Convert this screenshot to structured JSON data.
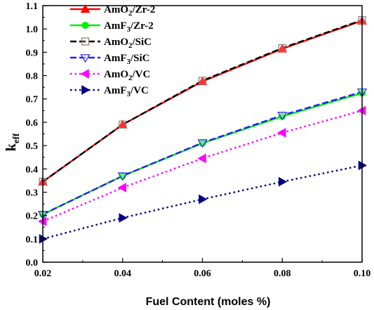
{
  "chart_data": {
    "type": "line",
    "xlabel": "Fuel Content (moles %)",
    "ylabel": "k",
    "ylabel_subscript": "eff",
    "xlim": [
      0.02,
      0.1
    ],
    "ylim": [
      0.0,
      1.1
    ],
    "x_ticks": [
      "0.02",
      "0.04",
      "0.06",
      "0.08",
      "0.10"
    ],
    "y_ticks": [
      "0.0",
      "0.1",
      "0.2",
      "0.3",
      "0.4",
      "0.5",
      "0.6",
      "0.7",
      "0.8",
      "0.9",
      "1.0",
      "1.1"
    ],
    "x": [
      0.02,
      0.04,
      0.06,
      0.08,
      0.1
    ],
    "grid": false,
    "legend_position": "top-left",
    "series": [
      {
        "name": "AmO2/Zr-2",
        "label_base": "AmO",
        "label_sub": "2",
        "label_rest": "/Zr-2",
        "values": [
          0.345,
          0.59,
          0.775,
          0.915,
          1.035
        ],
        "color": "#ff0000",
        "dash": "solid",
        "marker": "triangle-up-filled"
      },
      {
        "name": "AmF3/Zr-2",
        "label_base": "AmF",
        "label_sub": "3",
        "label_rest": "/Zr-2",
        "values": [
          0.205,
          0.37,
          0.51,
          0.625,
          0.725
        ],
        "color": "#00ee00",
        "dash": "solid",
        "marker": "circle-filled"
      },
      {
        "name": "AmO2/SiC",
        "label_base": "AmO",
        "label_sub": "2",
        "label_rest": "/SiC",
        "values": [
          0.345,
          0.59,
          0.778,
          0.918,
          1.038
        ],
        "color": "#000000",
        "dash": "dashed",
        "marker": "square-open"
      },
      {
        "name": "AmF3/SiC",
        "label_base": "AmF",
        "label_sub": "3",
        "label_rest": "/SiC",
        "values": [
          0.205,
          0.37,
          0.512,
          0.63,
          0.73
        ],
        "color": "#1f1fff",
        "dash": "dashed",
        "marker": "triangle-down-open"
      },
      {
        "name": "AmO2/VC",
        "label_base": "AmO",
        "label_sub": "2",
        "label_rest": "/VC",
        "values": [
          0.175,
          0.32,
          0.445,
          0.555,
          0.65
        ],
        "color": "#ff00ff",
        "dash": "dotted",
        "marker": "triangle-left-filled"
      },
      {
        "name": "AmF3/VC",
        "label_base": "AmF",
        "label_sub": "3",
        "label_rest": "/VC",
        "values": [
          0.1,
          0.19,
          0.27,
          0.345,
          0.415
        ],
        "color": "#000080",
        "dash": "dotted",
        "marker": "triangle-right-filled"
      }
    ]
  }
}
